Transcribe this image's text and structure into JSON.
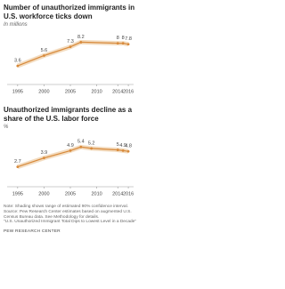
{
  "chart_data": [
    {
      "type": "line",
      "title": "Number of unauthorized immigrants in U.S. workforce ticks down",
      "subtitle": "In millions",
      "x": [
        1995,
        2000,
        2005,
        2007,
        2014,
        2015,
        2016
      ],
      "values": [
        3.6,
        5.6,
        7.3,
        8.2,
        8.0,
        8.0,
        7.8
      ],
      "color": "#d7893a",
      "xlim": [
        1993,
        2017
      ],
      "xticks": [
        1995,
        2000,
        2005,
        2010,
        2014,
        2016
      ],
      "ylim": [
        0,
        10
      ]
    },
    {
      "type": "line",
      "title": "Unauthorized immigrants decline as a share of the U.S. labor force",
      "subtitle": "%",
      "x": [
        1995,
        2000,
        2005,
        2007,
        2009,
        2014,
        2015,
        2016
      ],
      "values": [
        2.7,
        3.9,
        4.9,
        5.4,
        5.2,
        5.0,
        4.9,
        4.8
      ],
      "color": "#d7893a",
      "xlim": [
        1993,
        2017
      ],
      "xticks": [
        1995,
        2000,
        2005,
        2010,
        2014,
        2016
      ],
      "ylim": [
        0,
        7
      ]
    }
  ],
  "notes": [
    "Note: Shading shows range of estimated 90% confidence interval.",
    "Source: Pew Research Center estimates based on augmented U.S. Census Bureau data. See Methodology for details.",
    "“U.S. Unauthorized Immigrant Total Dips to Lowest Level in a Decade”"
  ],
  "org": "PEW RESEARCH CENTER"
}
